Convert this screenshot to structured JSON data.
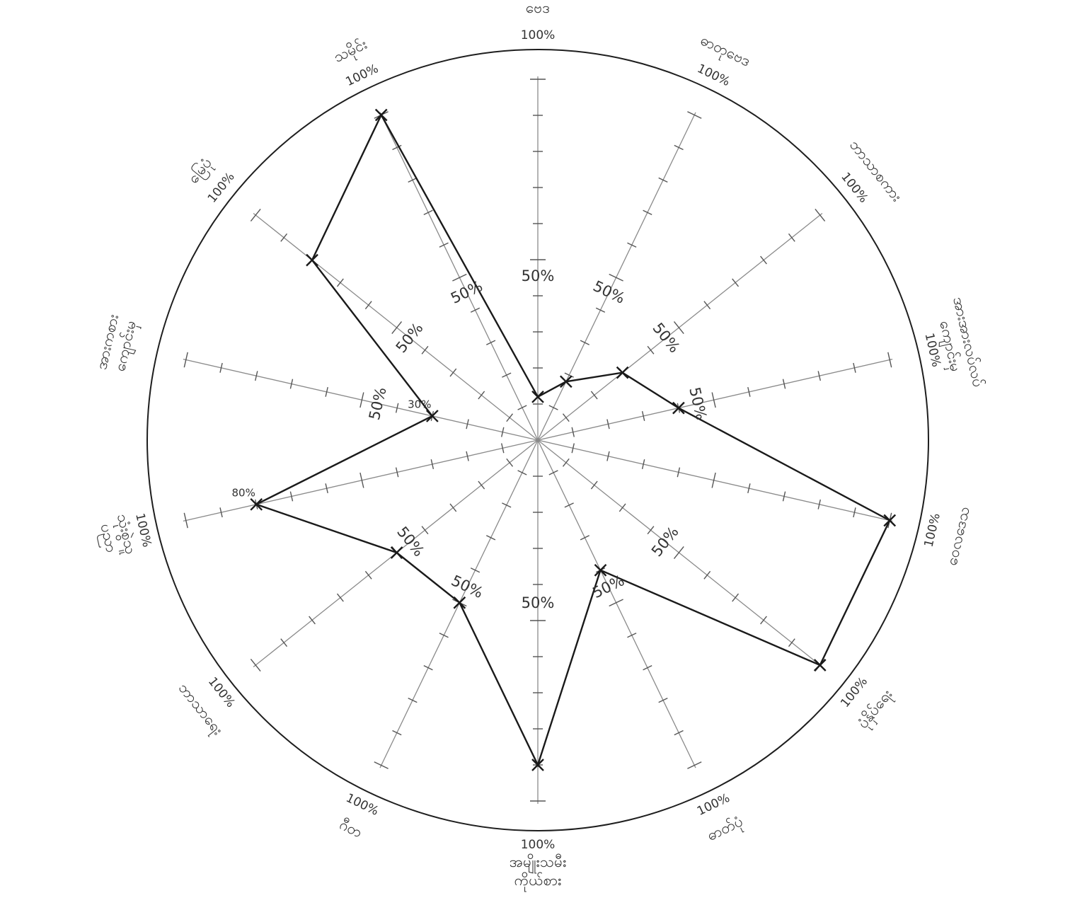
{
  "chart_data": {
    "type": "radar",
    "title": "",
    "range": [
      0,
      100
    ],
    "tick_step": 10,
    "axes": [
      {
        "label": "",
        "label_lines": [
          "ဗေဒ"
        ],
        "end_label": "100%",
        "mid_label": "50%",
        "value": 12
      },
      {
        "label": "",
        "label_lines": [
          "ဓာတုဗေဒ"
        ],
        "end_label": "100%",
        "mid_label": "50%",
        "value": 18
      },
      {
        "label": "",
        "label_lines": [
          "ဘာသာစကား"
        ],
        "end_label": "100%",
        "mid_label": "50%",
        "value": 30
      },
      {
        "label": "",
        "label_lines": [
          "အားအားလပ်လပ်",
          "ကျောင်းမှ"
        ],
        "end_label": "100%",
        "mid_label": "50%",
        "value": 40
      },
      {
        "label": "",
        "label_lines": [
          "ဝေလဒေသ"
        ],
        "end_label": "100%",
        "mid_label": "",
        "value": 100
      },
      {
        "label": "",
        "label_lines": [
          "ပုံနှိပ်ရေး"
        ],
        "end_label": "100%",
        "mid_label": "50%",
        "value": 100
      },
      {
        "label": "",
        "label_lines": [
          "ဓာတ်ပုံ"
        ],
        "end_label": "100%",
        "mid_label": "50%",
        "value": 40
      },
      {
        "label": "",
        "label_lines": [
          "အမျိုးသမီး",
          "ကိုယ်စား"
        ],
        "end_label": "100%",
        "mid_label": "50%",
        "value": 90
      },
      {
        "label": "",
        "label_lines": [
          "ဂီတ"
        ],
        "end_label": "100%",
        "mid_label": "50%",
        "value": 50
      },
      {
        "label": "",
        "label_lines": [
          "ဘာသာရေး"
        ],
        "end_label": "100%",
        "mid_label": "50%",
        "value": 50
      },
      {
        "label": "",
        "label_lines": [
          "သုံးစွဲသူ",
          "ပညာ"
        ],
        "end_label": "100%",
        "mid_label": "",
        "value": 80,
        "value_label": "80%"
      },
      {
        "label": "",
        "label_lines": [
          "အားကစား",
          "ကျောင်းမှ"
        ],
        "end_label": "",
        "mid_label": "50%",
        "value": 30,
        "value_label": "30%"
      },
      {
        "label": "",
        "label_lines": [
          "မြေပုံ"
        ],
        "end_label": "100%",
        "mid_label": "50%",
        "value": 80
      },
      {
        "label": "",
        "label_lines": [
          "သမိုင်း"
        ],
        "end_label": "100%",
        "mid_label": "50%",
        "value": 100
      }
    ]
  }
}
